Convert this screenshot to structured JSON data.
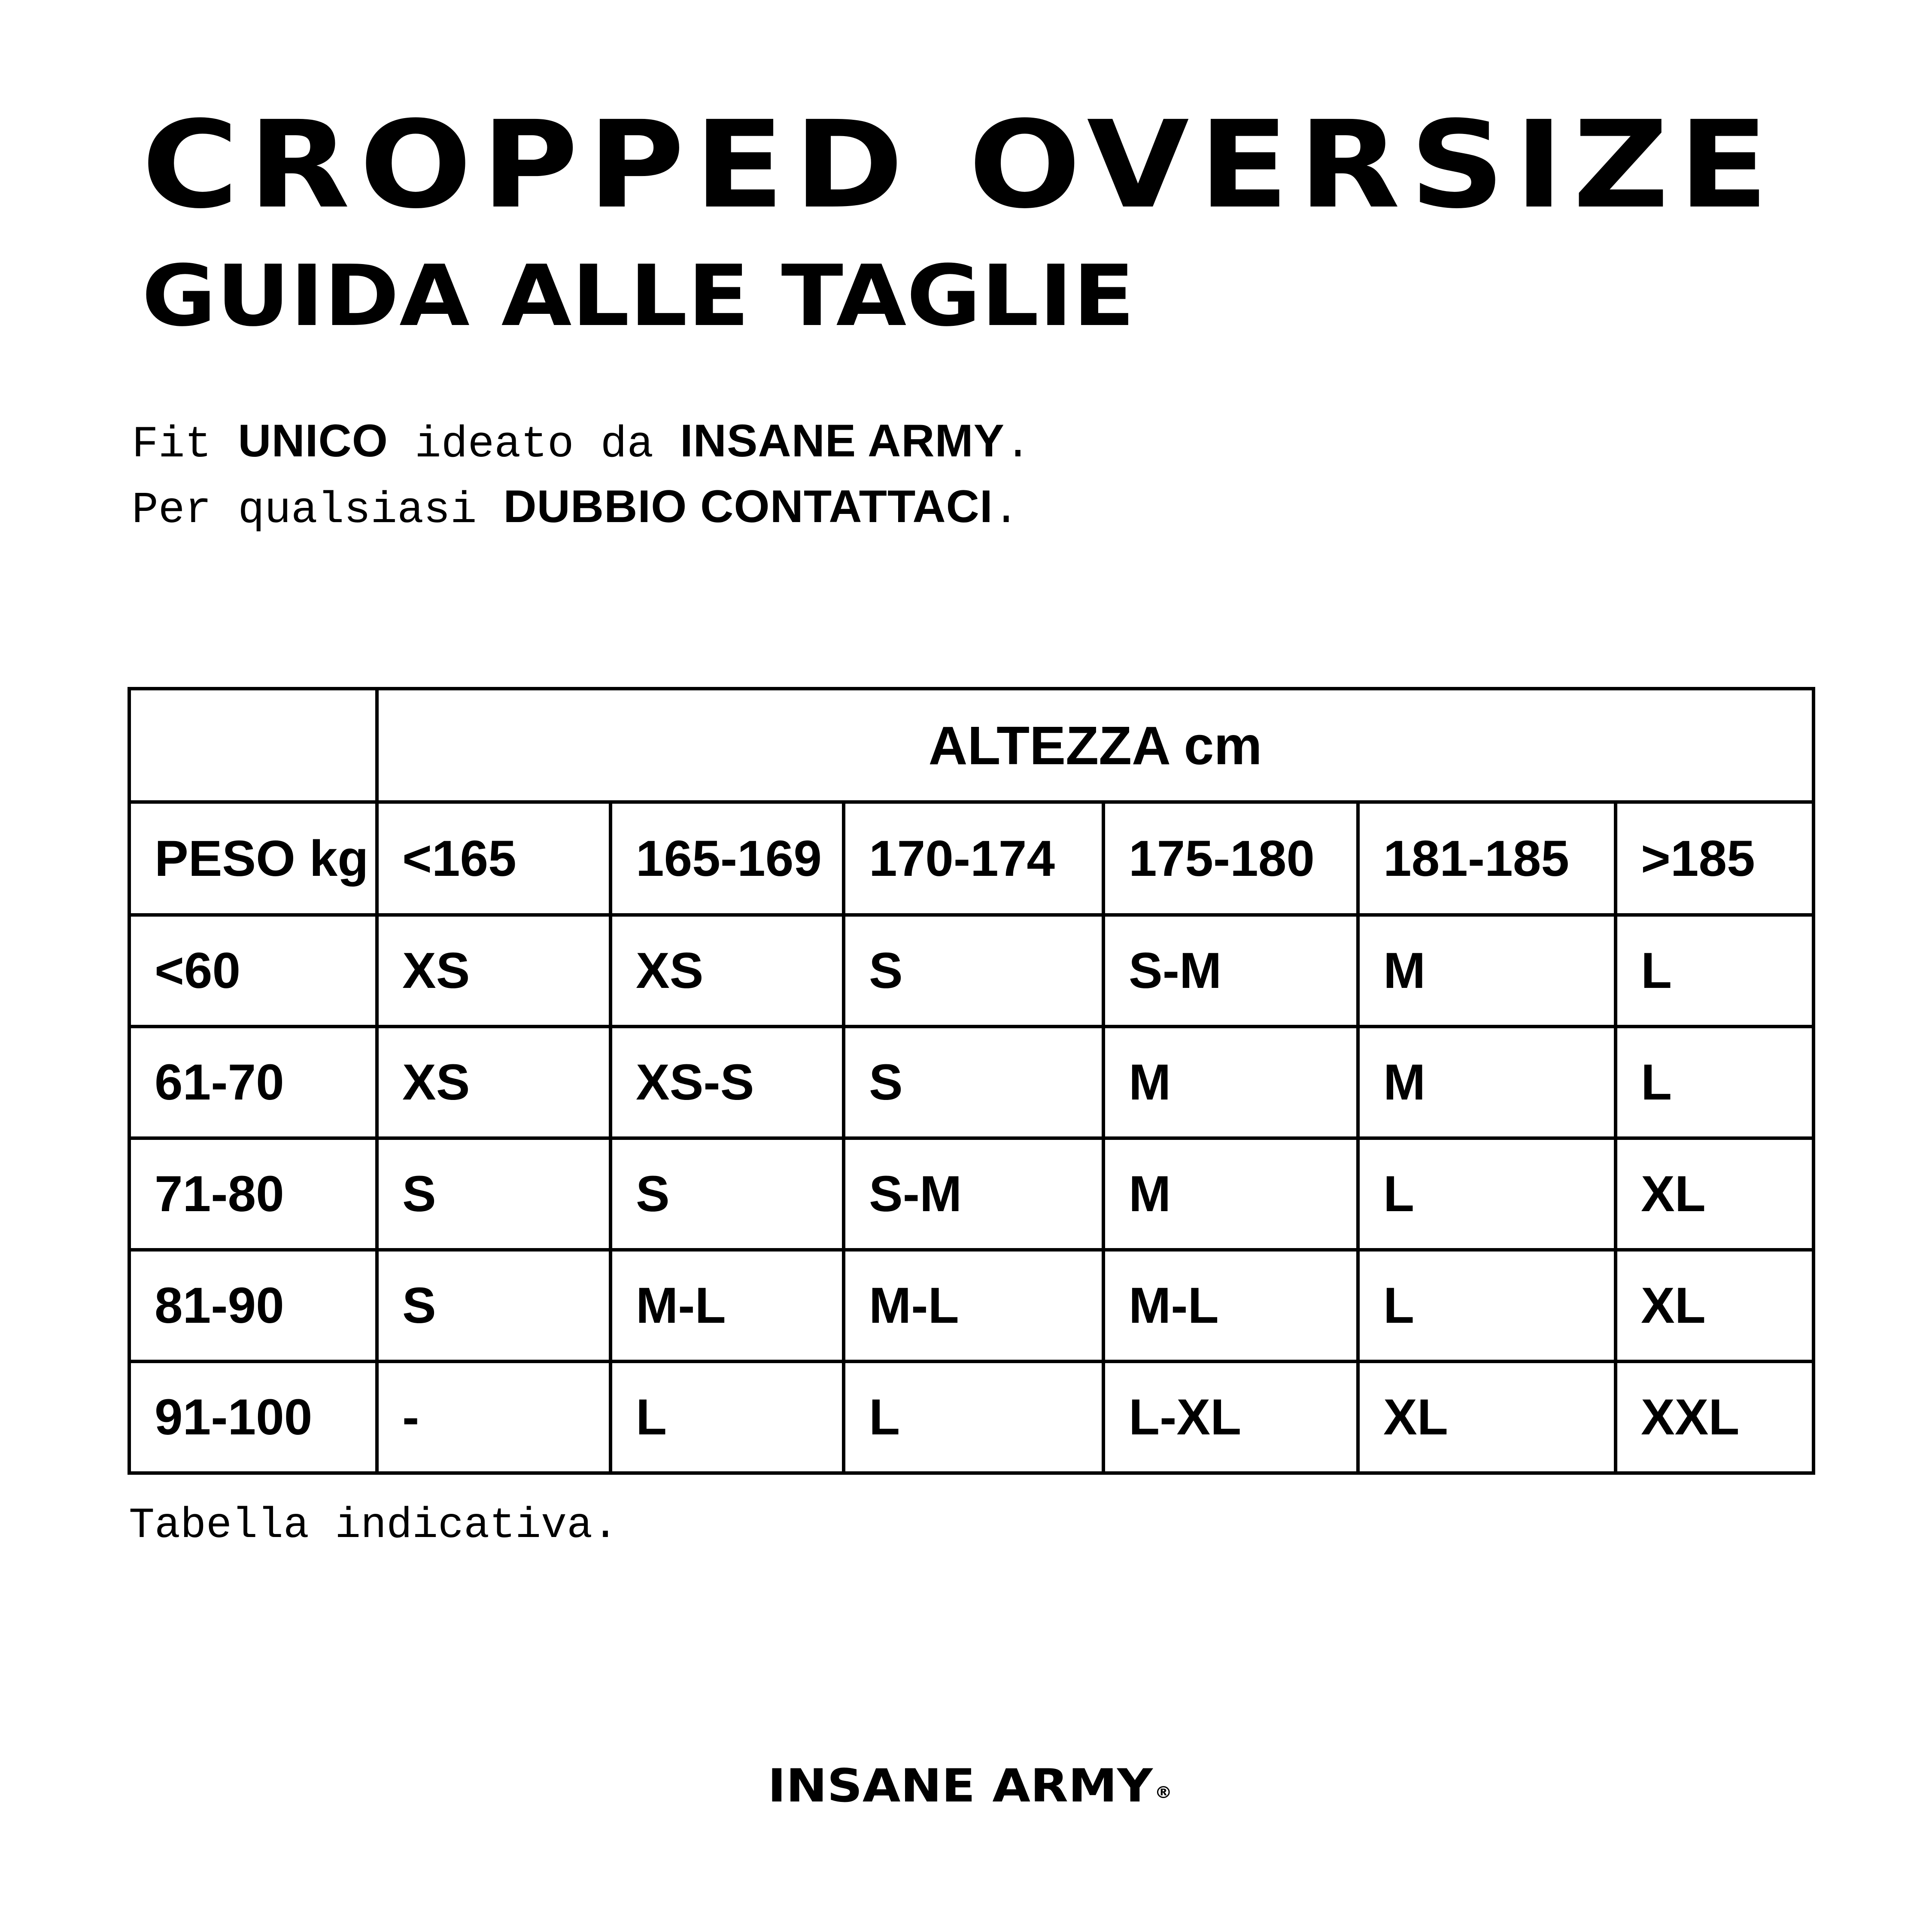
{
  "page": {
    "background_color": "#ffffff",
    "text_color": "#000000"
  },
  "header": {
    "title": "CROPPED OVERSIZE",
    "subtitle": "GUIDA ALLE TAGLIE"
  },
  "intro": {
    "line1": {
      "seg1": "Fit ",
      "seg2": "UNICO",
      "seg3": " ideato da ",
      "seg4": "INSANE ARMY",
      "seg5": "."
    },
    "line2": {
      "seg1": "Per qualsiasi ",
      "seg2": "DUBBIO CONTATTACI",
      "seg3": "."
    }
  },
  "size_table": {
    "height_header": "ALTEZZA cm",
    "weight_header": "PESO kg",
    "height_columns": [
      "<165",
      "165-169",
      "170-174",
      "175-180",
      "181-185",
      ">185"
    ],
    "rows": [
      {
        "weight": "<60",
        "sizes": [
          "XS",
          "XS",
          "S",
          "S-M",
          "M",
          "L"
        ]
      },
      {
        "weight": "61-70",
        "sizes": [
          "XS",
          "XS-S",
          "S",
          "M",
          "M",
          "L"
        ]
      },
      {
        "weight": "71-80",
        "sizes": [
          "S",
          "S",
          "S-M",
          "M",
          "L",
          "XL"
        ]
      },
      {
        "weight": "81-90",
        "sizes": [
          "S",
          "M-L",
          "M-L",
          "M-L",
          "L",
          "XL"
        ]
      },
      {
        "weight": "91-100",
        "sizes": [
          "-",
          "L",
          "L",
          "L-XL",
          "XL",
          "XXL"
        ]
      }
    ]
  },
  "footer": {
    "note": "Tabella indicativa.",
    "brand": "INSANE ARMY",
    "registered_mark": "®"
  }
}
